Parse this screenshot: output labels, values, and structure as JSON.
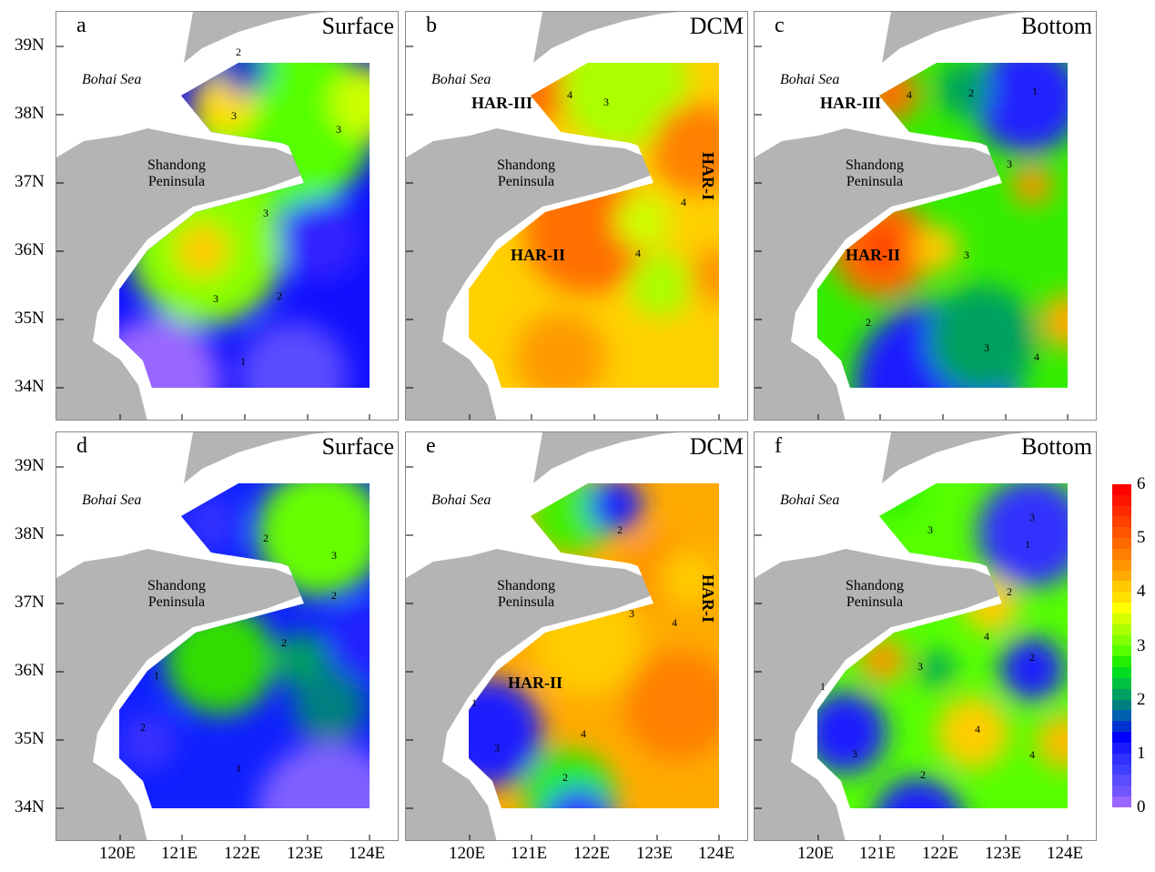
{
  "panels": [
    {
      "letter": "a",
      "depth": "Surface",
      "bohai": "Bohai Sea",
      "shandong": "Shandong Peninsula",
      "har": [],
      "contours": [
        "2",
        "3",
        "3",
        "3",
        "3",
        "2",
        "1"
      ]
    },
    {
      "letter": "b",
      "depth": "DCM",
      "bohai": "Bohai Sea",
      "shandong": "Shandong Peninsula",
      "har": [
        "HAR-III",
        "HAR-II",
        "HAR-I"
      ],
      "contours": [
        "4",
        "3",
        "4",
        "4"
      ]
    },
    {
      "letter": "c",
      "depth": "Bottom",
      "bohai": "Bohai Sea",
      "shandong": "Shandong Peninsula",
      "har": [
        "HAR-III",
        "HAR-II"
      ],
      "contours": [
        "4",
        "2",
        "1",
        "3",
        "3",
        "4",
        "2",
        "3"
      ]
    },
    {
      "letter": "d",
      "depth": "Surface",
      "bohai": "Bohai Sea",
      "shandong": "Shandong Peninsula",
      "har": [],
      "contours": [
        "2",
        "3",
        "2",
        "2",
        "1",
        "2",
        "1"
      ]
    },
    {
      "letter": "e",
      "depth": "DCM",
      "bohai": "Bohai Sea",
      "shandong": "Shandong Peninsula",
      "har": [
        "HAR-II",
        "HAR-I"
      ],
      "contours": [
        "2",
        "3",
        "4",
        "1",
        "3",
        "4",
        "2"
      ]
    },
    {
      "letter": "f",
      "depth": "Bottom",
      "bohai": "Bohai Sea",
      "shandong": "Shandong Peninsula",
      "har": [],
      "contours": [
        "3",
        "3",
        "1",
        "2",
        "4",
        "2",
        "3",
        "1",
        "3",
        "4",
        "4",
        "2"
      ]
    }
  ],
  "lat_labels": [
    "39N",
    "38N",
    "37N",
    "36N",
    "35N",
    "34N"
  ],
  "lon_labels": [
    "120E",
    "121E",
    "122E",
    "123E",
    "124E"
  ],
  "colorbar": {
    "ticks": [
      "6",
      "5",
      "4",
      "3",
      "2",
      "1",
      "0"
    ],
    "colors": [
      "#ff0000",
      "#ff1400",
      "#ff2a00",
      "#ff4000",
      "#ff5500",
      "#ff6a00",
      "#ff8000",
      "#ff9500",
      "#ffaa00",
      "#ffc800",
      "#ffe000",
      "#ffff00",
      "#d4ff00",
      "#aaff00",
      "#80ff00",
      "#55ff00",
      "#22ee00",
      "#00dd22",
      "#00c040",
      "#00a060",
      "#008080",
      "#0060b0",
      "#0033d0",
      "#0000ff",
      "#1a1aff",
      "#3030ff",
      "#4040ff",
      "#5a4cff",
      "#7055ff",
      "#9966ff"
    ]
  }
}
